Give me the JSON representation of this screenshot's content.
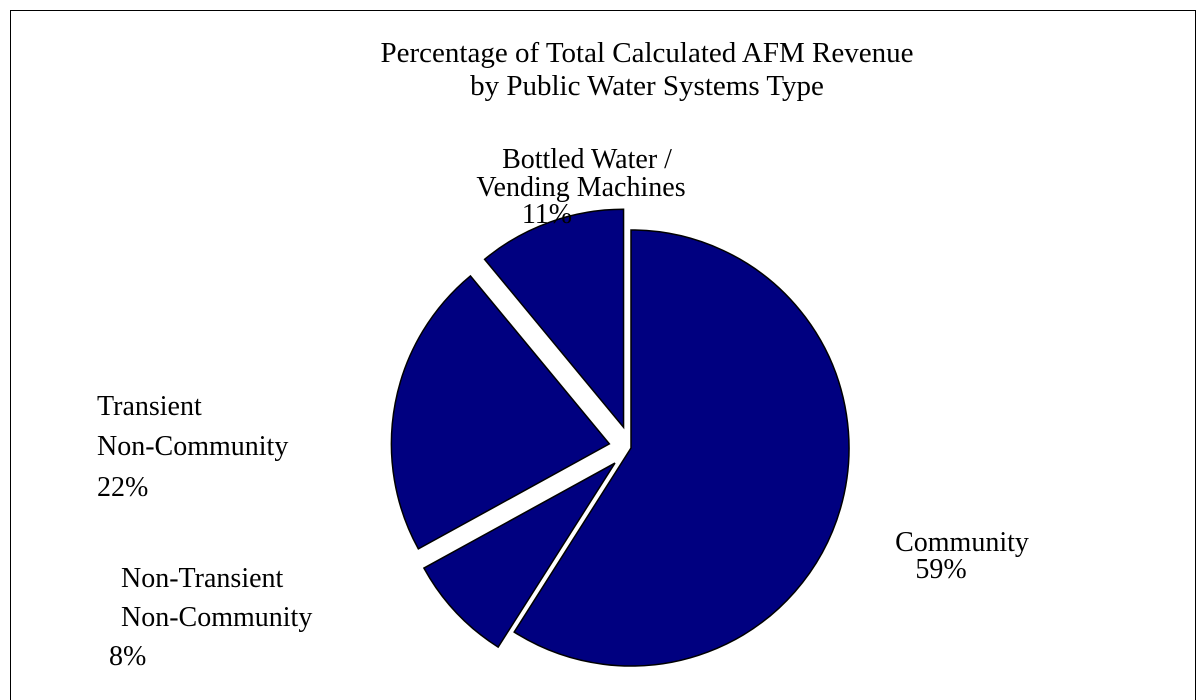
{
  "chart_data": {
    "type": "pie",
    "title": [
      "Percentage of Total Calculated AFM Revenue",
      "by Public Water Systems Type"
    ],
    "slices": [
      {
        "label": [
          "Community"
        ],
        "value": 59,
        "value_text": "59%",
        "exploded": false
      },
      {
        "label": [
          "Non-Transient",
          "Non-Community"
        ],
        "value": 8,
        "value_text": "8%",
        "exploded": true
      },
      {
        "label": [
          "Transient",
          "Non-Community"
        ],
        "value": 22,
        "value_text": "22%",
        "exploded": true
      },
      {
        "label": [
          "Bottled Water /",
          "Vending Machines"
        ],
        "value": 11,
        "value_text": "11%",
        "exploded": true
      }
    ],
    "start_angle": "12 o'clock",
    "direction": "clockwise",
    "slice_color": "#000080",
    "slice_stroke": "#000000",
    "legend": "none"
  }
}
